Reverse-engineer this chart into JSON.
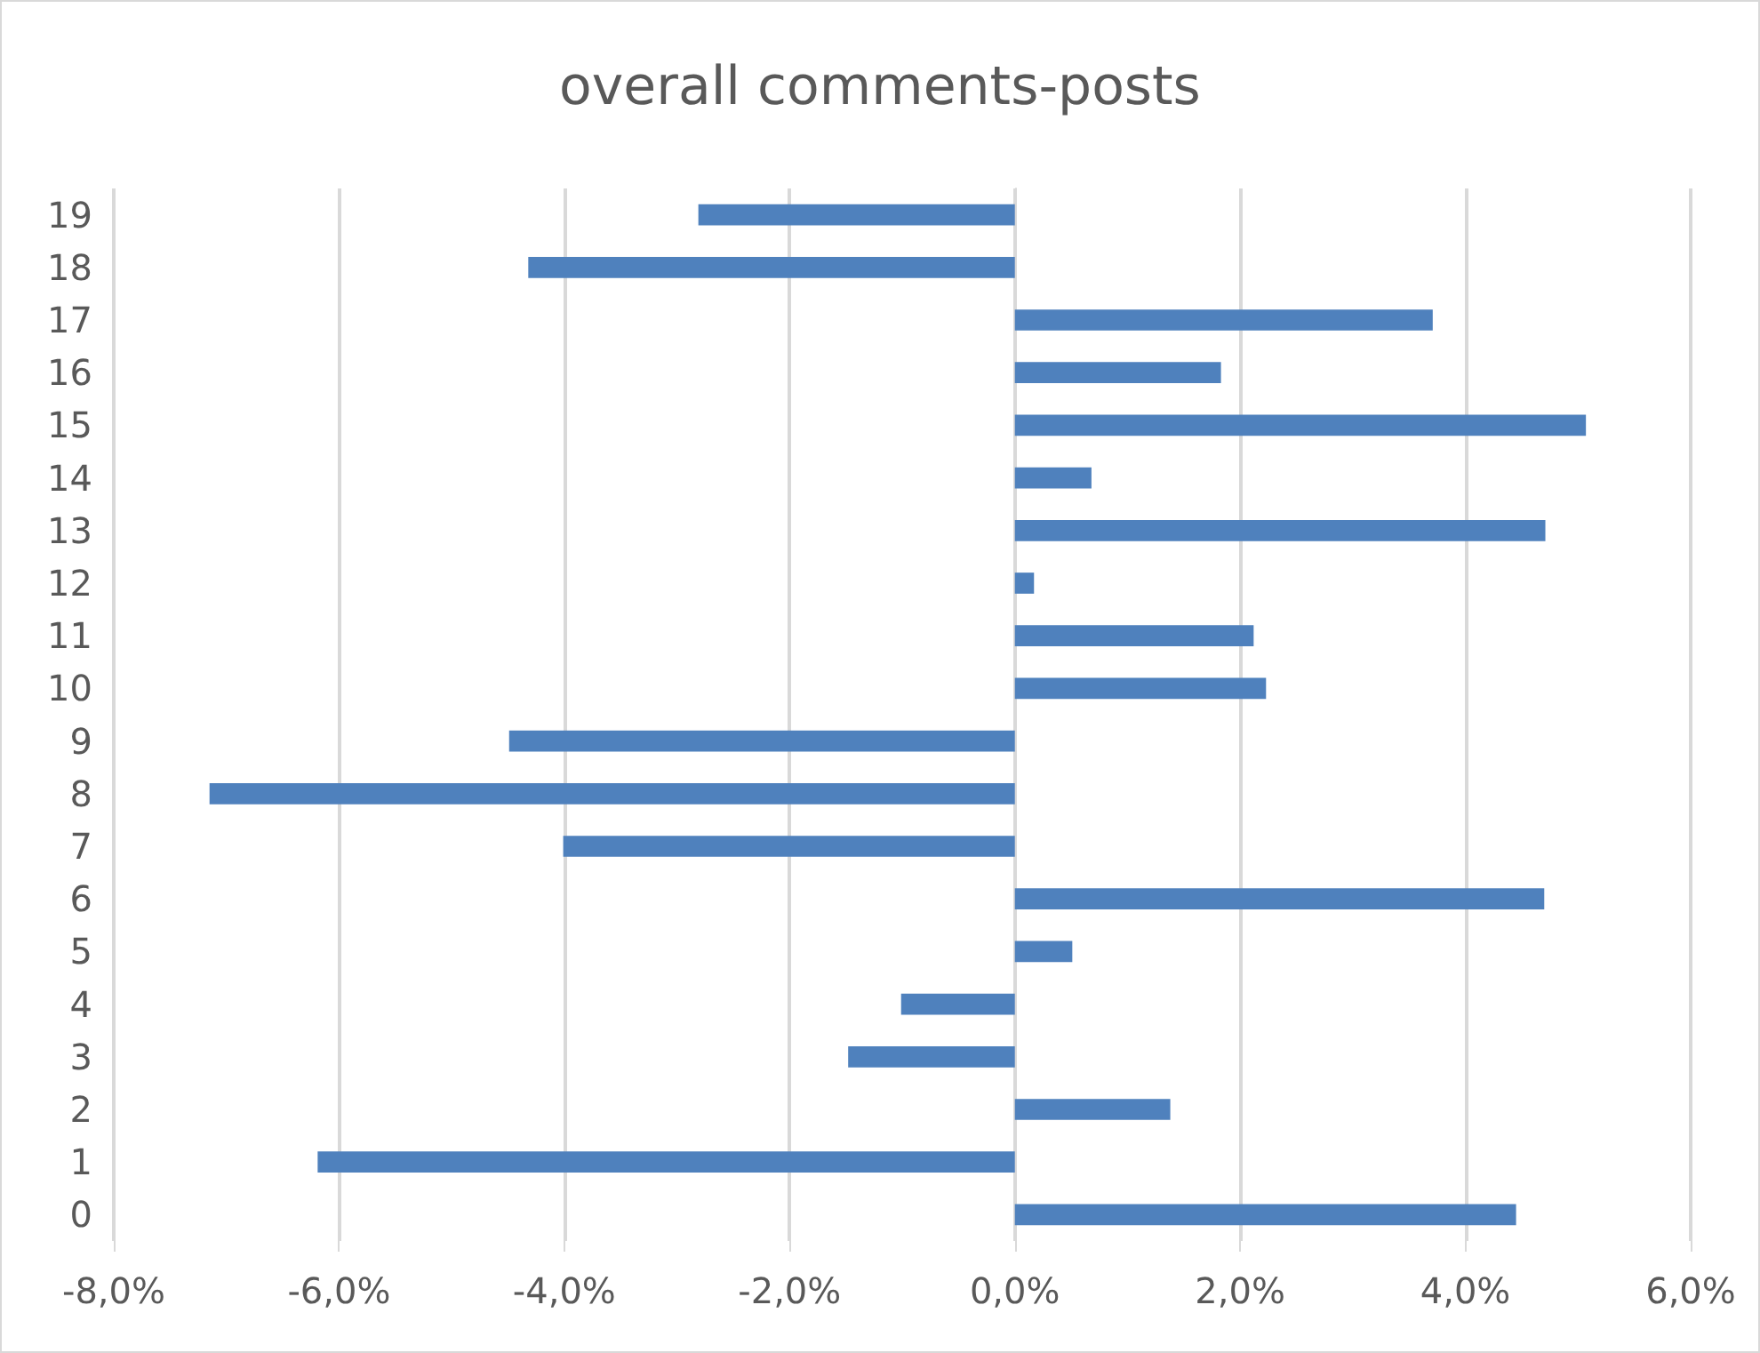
{
  "chart_data": {
    "type": "bar",
    "orientation": "horizontal",
    "title": "overall comments-posts",
    "categories": [
      "19",
      "18",
      "17",
      "16",
      "15",
      "14",
      "13",
      "12",
      "11",
      "10",
      "9",
      "8",
      "7",
      "6",
      "5",
      "4",
      "3",
      "2",
      "1",
      "0"
    ],
    "values": [
      -2.81,
      -4.32,
      3.71,
      1.83,
      5.07,
      0.68,
      4.71,
      0.17,
      2.12,
      2.23,
      -4.49,
      -7.15,
      -4.01,
      4.7,
      0.51,
      -1.01,
      -1.48,
      1.38,
      -6.19,
      4.45
    ],
    "color": "#4f81bd",
    "xlim": [
      -8,
      6
    ],
    "xticks": [
      {
        "value": -8,
        "label": "-8,0%"
      },
      {
        "value": -6,
        "label": "-6,0%"
      },
      {
        "value": -4,
        "label": "-4,0%"
      },
      {
        "value": -2,
        "label": "-2,0%"
      },
      {
        "value": 0,
        "label": "0,0%"
      },
      {
        "value": 2,
        "label": "2,0%"
      },
      {
        "value": 4,
        "label": "4,0%"
      },
      {
        "value": 6,
        "label": "6,0%"
      }
    ],
    "grid": "x"
  }
}
